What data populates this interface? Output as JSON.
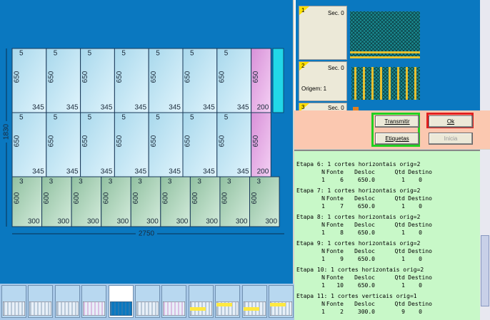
{
  "diagram": {
    "dimensions": {
      "height": "1830",
      "width": "2750"
    },
    "rows": [
      {
        "pieces": [
          {
            "qty": "5",
            "height": "650",
            "width": "345"
          },
          {
            "qty": "5",
            "height": "650",
            "width": "345"
          },
          {
            "qty": "5",
            "height": "650",
            "width": "345"
          },
          {
            "qty": "5",
            "height": "650",
            "width": "345"
          },
          {
            "qty": "5",
            "height": "650",
            "width": "345"
          },
          {
            "qty": "5",
            "height": "650",
            "width": "345"
          },
          {
            "qty": "5",
            "height": "650",
            "width": "345"
          },
          {
            "height": "650",
            "width": "200",
            "color": "pink"
          }
        ]
      },
      {
        "pieces": [
          {
            "qty": "5",
            "height": "650",
            "width": "345"
          },
          {
            "qty": "5",
            "height": "650",
            "width": "345"
          },
          {
            "qty": "5",
            "height": "650",
            "width": "345"
          },
          {
            "qty": "5",
            "height": "650",
            "width": "345"
          },
          {
            "qty": "5",
            "height": "650",
            "width": "345"
          },
          {
            "qty": "5",
            "height": "650",
            "width": "345"
          },
          {
            "qty": "5",
            "height": "650",
            "width": "345"
          },
          {
            "height": "650",
            "width": "200",
            "color": "pink"
          }
        ]
      },
      {
        "pieces": [
          {
            "qty": "3",
            "height": "600",
            "width": "300",
            "color": "green"
          },
          {
            "qty": "3",
            "height": "600",
            "width": "300",
            "color": "green"
          },
          {
            "qty": "3",
            "height": "600",
            "width": "300",
            "color": "green"
          },
          {
            "qty": "3",
            "height": "600",
            "width": "300",
            "color": "green"
          },
          {
            "qty": "3",
            "height": "600",
            "width": "300",
            "color": "green"
          },
          {
            "qty": "3",
            "height": "600",
            "width": "300",
            "color": "green"
          },
          {
            "qty": "3",
            "height": "600",
            "width": "300",
            "color": "green"
          },
          {
            "qty": "3",
            "height": "600",
            "width": "300",
            "color": "green"
          },
          {
            "qty": "3",
            "height": "600",
            "width": "300",
            "color": "green"
          }
        ]
      }
    ]
  },
  "layers": [
    {
      "number": "1",
      "section": "Sec. 0"
    },
    {
      "number": "2",
      "section": "Sec. 0",
      "origin": "Origem: 1"
    },
    {
      "number": "3",
      "section": "Sec. 0"
    }
  ],
  "buttons": {
    "transmit": "Transmitir",
    "labels": "Etiquetas",
    "ok": "Ok",
    "start": "Inicia"
  },
  "log": {
    "columns": [
      "N",
      "Fonte",
      "Desloc",
      "Qtd",
      "Destino"
    ],
    "steps": [
      {
        "title": "Etapa 6: 1 cortes horizontais orig=2",
        "row": [
          "1",
          "6",
          "650.0",
          "1",
          "0"
        ]
      },
      {
        "title": "Etapa 7: 1 cortes horizontais orig=2",
        "row": [
          "1",
          "7",
          "650.0",
          "1",
          "0"
        ]
      },
      {
        "title": "Etapa 8: 1 cortes horizontais orig=2",
        "row": [
          "1",
          "8",
          "650.0",
          "1",
          "0"
        ]
      },
      {
        "title": "Etapa 9: 1 cortes horizontais orig=2",
        "row": [
          "1",
          "9",
          "650.0",
          "1",
          "0"
        ]
      },
      {
        "title": "Etapa 10: 1 cortes horizontais orig=2",
        "row": [
          "1",
          "10",
          "650.0",
          "1",
          "0"
        ]
      },
      {
        "title": "Etapa 11: 1 cortes verticais orig=1",
        "row": [
          "1",
          "2",
          "300.0",
          "9",
          "0"
        ]
      }
    ]
  }
}
